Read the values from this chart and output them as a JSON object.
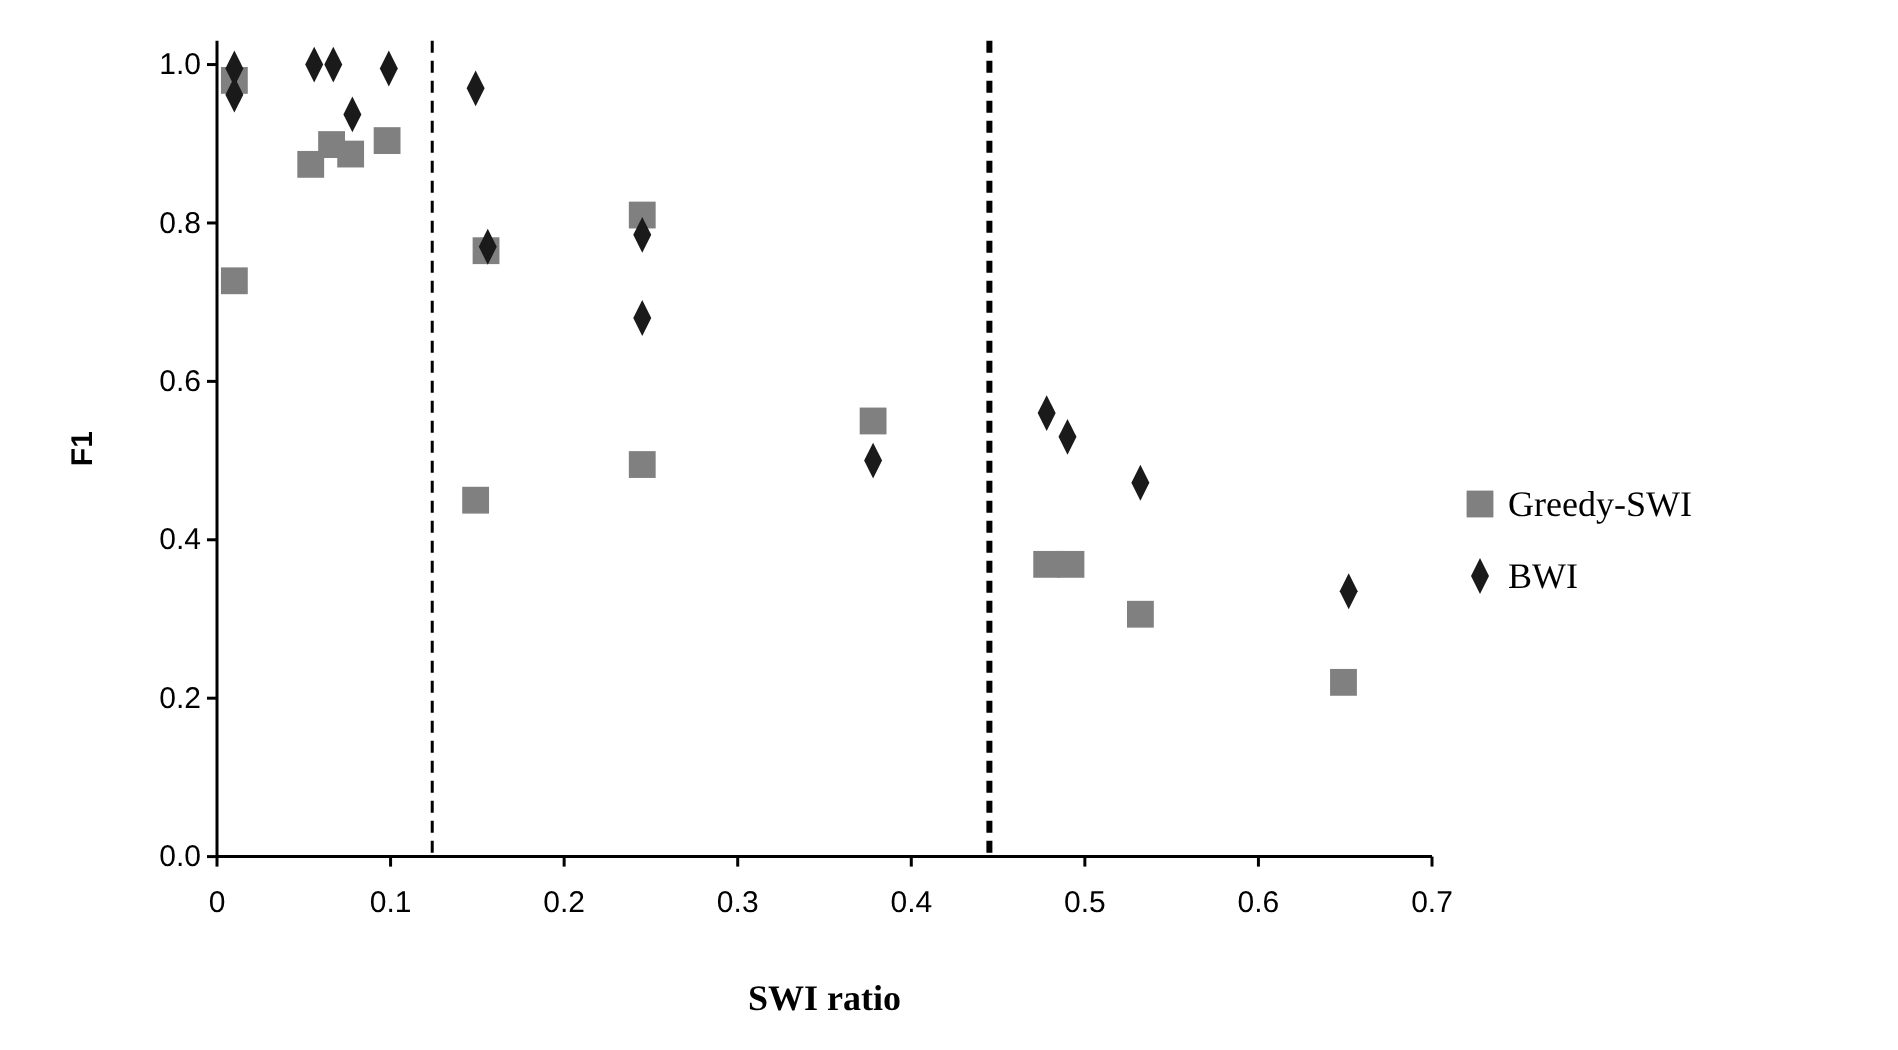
{
  "chart_data": {
    "type": "scatter",
    "xlabel": "SWI ratio",
    "ylabel": "F1",
    "xlim": [
      0,
      0.7
    ],
    "ylim": [
      0,
      1.03
    ],
    "xticks": [
      0,
      0.1,
      0.2,
      0.3,
      0.4,
      0.5,
      0.6,
      0.7
    ],
    "yticks": [
      {
        "value": 0,
        "label": "0.0"
      },
      {
        "value": 0.2,
        "label": "0.2"
      },
      {
        "value": 0.4,
        "label": "0.4"
      },
      {
        "value": 0.6,
        "label": "0.6"
      },
      {
        "value": 0.8,
        "label": "0.8"
      },
      {
        "value": 1,
        "label": "1.0"
      }
    ],
    "grid": false,
    "legend": "right",
    "ref_lines": [
      {
        "axis": "x",
        "value": 0.124,
        "line_style": "dashed",
        "color": "#000000"
      },
      {
        "axis": "x",
        "value": 0.445,
        "line_style": "dashed",
        "color": "#000000"
      }
    ],
    "series": [
      {
        "name": "Greedy-SWI",
        "color": "#808080",
        "marker": "square",
        "x": [
          0.01,
          0.01,
          0.054,
          0.066,
          0.077,
          0.098,
          0.149,
          0.155,
          0.245,
          0.245,
          0.378,
          0.478,
          0.492,
          0.532,
          0.649
        ],
        "values": [
          0.98,
          0.727,
          0.874,
          0.899,
          0.887,
          0.904,
          0.45,
          0.765,
          0.81,
          0.495,
          0.55,
          0.369,
          0.369,
          0.306,
          0.22
        ]
      },
      {
        "name": "BWI",
        "color": "#1a1a1a",
        "marker": "diamond",
        "x": [
          0.01,
          0.01,
          0.056,
          0.067,
          0.078,
          0.099,
          0.149,
          0.156,
          0.245,
          0.245,
          0.378,
          0.478,
          0.49,
          0.532,
          0.652
        ],
        "values": [
          0.995,
          0.962,
          1.0,
          1.0,
          0.937,
          0.995,
          0.97,
          0.77,
          0.785,
          0.68,
          0.5,
          0.56,
          0.53,
          0.472,
          0.335
        ]
      }
    ]
  }
}
